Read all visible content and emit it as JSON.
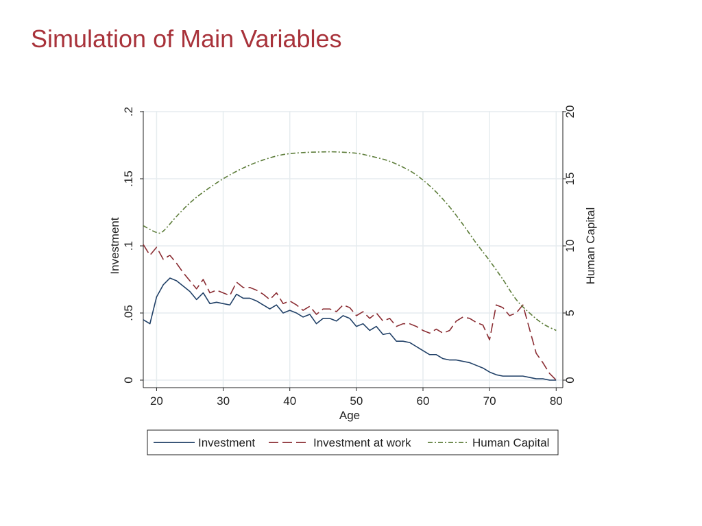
{
  "slide": {
    "title": "Simulation of Main Variables"
  },
  "colors": {
    "title": "#a8323a",
    "investment": "#1f3f66",
    "investment_at_work": "#8a2c32",
    "human_capital": "#5d7d3a",
    "grid": "#e6ecef",
    "axis": "#222222"
  },
  "chart_data": {
    "type": "line",
    "title": "",
    "xlabel": "Age",
    "ylabel_left": "Investment",
    "ylabel_right": "Human Capital",
    "xlim": [
      18,
      81
    ],
    "ylim_left": [
      0,
      0.2
    ],
    "ylim_right": [
      0,
      20
    ],
    "x_ticks": [
      20,
      30,
      40,
      50,
      60,
      70,
      80
    ],
    "x_tick_labels": [
      "20",
      "30",
      "40",
      "50",
      "60",
      "70",
      "80"
    ],
    "y_left_ticks": [
      0,
      0.05,
      0.1,
      0.15,
      0.2
    ],
    "y_left_tick_labels": [
      "0",
      ".05",
      ".1",
      ".15",
      ".2"
    ],
    "y_right_ticks": [
      0,
      5,
      10,
      15,
      20
    ],
    "y_right_tick_labels": [
      "0",
      "5",
      "10",
      "15",
      "20"
    ],
    "grid": true,
    "legend_position": "bottom",
    "series": [
      {
        "name": "Investment",
        "axis": "left",
        "style": "solid",
        "x": [
          18,
          19,
          20,
          21,
          22,
          23,
          24,
          25,
          26,
          27,
          28,
          29,
          30,
          31,
          32,
          33,
          34,
          35,
          36,
          37,
          38,
          39,
          40,
          41,
          42,
          43,
          44,
          45,
          46,
          47,
          48,
          49,
          50,
          51,
          52,
          53,
          54,
          55,
          56,
          57,
          58,
          59,
          60,
          61,
          62,
          63,
          64,
          65,
          66,
          67,
          68,
          69,
          70,
          71,
          72,
          73,
          74,
          75,
          76,
          77,
          78,
          79,
          80
        ],
        "values": [
          0.045,
          0.042,
          0.062,
          0.071,
          0.076,
          0.074,
          0.07,
          0.066,
          0.06,
          0.065,
          0.057,
          0.058,
          0.057,
          0.056,
          0.064,
          0.061,
          0.061,
          0.059,
          0.056,
          0.053,
          0.056,
          0.05,
          0.052,
          0.05,
          0.047,
          0.049,
          0.042,
          0.046,
          0.046,
          0.044,
          0.048,
          0.046,
          0.04,
          0.042,
          0.037,
          0.04,
          0.034,
          0.035,
          0.029,
          0.029,
          0.028,
          0.025,
          0.022,
          0.019,
          0.019,
          0.016,
          0.015,
          0.015,
          0.014,
          0.013,
          0.011,
          0.009,
          0.006,
          0.004,
          0.003,
          0.003,
          0.003,
          0.003,
          0.002,
          0.001,
          0.001,
          0.0,
          0.0
        ]
      },
      {
        "name": "Investment at work",
        "axis": "left",
        "style": "dashed",
        "x": [
          18,
          19,
          20,
          21,
          22,
          23,
          24,
          25,
          26,
          27,
          28,
          29,
          30,
          31,
          32,
          33,
          34,
          35,
          36,
          37,
          38,
          39,
          40,
          41,
          42,
          43,
          44,
          45,
          46,
          47,
          48,
          49,
          50,
          51,
          52,
          53,
          54,
          55,
          56,
          57,
          58,
          59,
          60,
          61,
          62,
          63,
          64,
          65,
          66,
          67,
          68,
          69,
          70,
          71,
          72,
          73,
          74,
          75,
          76,
          77,
          78,
          79,
          80
        ],
        "values": [
          0.101,
          0.093,
          0.099,
          0.09,
          0.093,
          0.087,
          0.08,
          0.074,
          0.068,
          0.075,
          0.065,
          0.067,
          0.065,
          0.063,
          0.073,
          0.069,
          0.069,
          0.067,
          0.064,
          0.06,
          0.065,
          0.057,
          0.059,
          0.056,
          0.052,
          0.055,
          0.049,
          0.053,
          0.053,
          0.051,
          0.056,
          0.054,
          0.048,
          0.051,
          0.046,
          0.05,
          0.044,
          0.046,
          0.04,
          0.042,
          0.042,
          0.04,
          0.037,
          0.035,
          0.038,
          0.035,
          0.037,
          0.044,
          0.047,
          0.046,
          0.043,
          0.041,
          0.03,
          0.056,
          0.054,
          0.048,
          0.05,
          0.056,
          0.038,
          0.02,
          0.013,
          0.005,
          0.0
        ]
      },
      {
        "name": "Human Capital",
        "axis": "right",
        "style": "dashdot",
        "x": [
          18,
          20,
          21,
          23,
          25,
          27,
          30,
          33,
          36,
          39,
          42,
          45,
          47,
          50,
          52,
          55,
          58,
          60,
          62,
          64,
          66,
          68,
          70,
          72,
          74,
          76,
          78,
          80
        ],
        "values": [
          11.5,
          11.0,
          11.1,
          12.2,
          13.2,
          14.0,
          15.0,
          15.8,
          16.4,
          16.8,
          16.95,
          17.0,
          17.0,
          16.9,
          16.7,
          16.3,
          15.6,
          14.9,
          14.0,
          12.9,
          11.6,
          10.2,
          8.9,
          7.5,
          6.0,
          5.0,
          4.2,
          3.7
        ]
      }
    ]
  }
}
